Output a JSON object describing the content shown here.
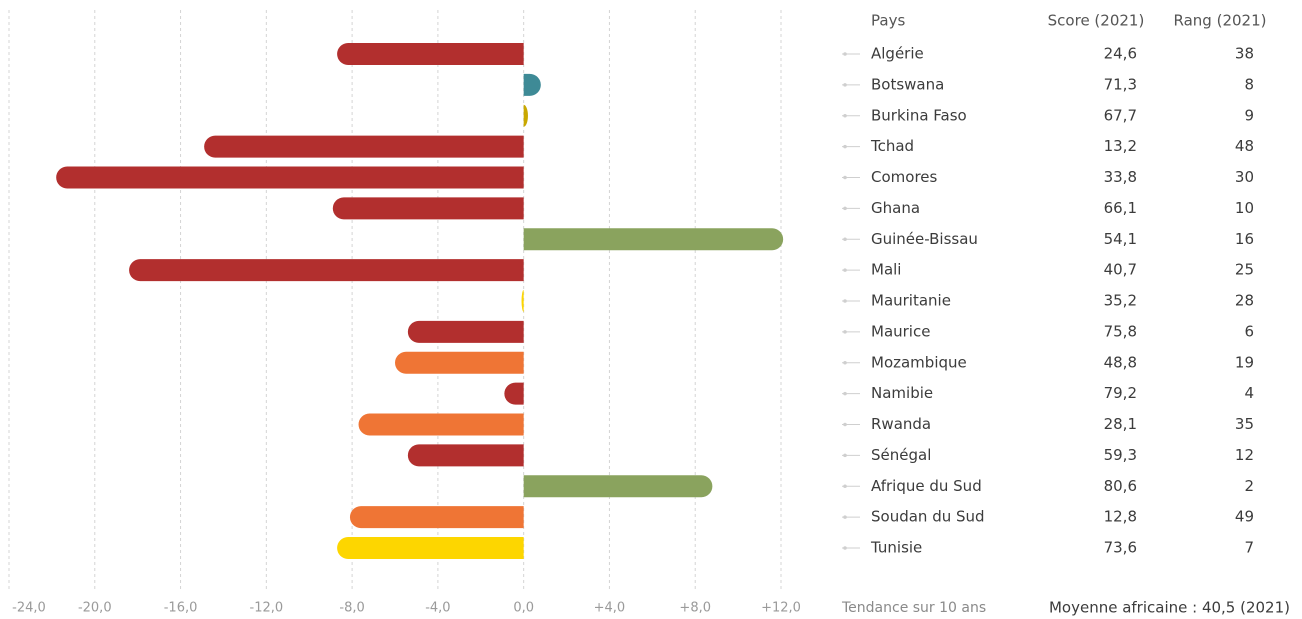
{
  "chart_data": {
    "type": "bar",
    "orientation": "horizontal",
    "categories": [
      "Algérie",
      "Botswana",
      "Burkina Faso",
      "Tchad",
      "Comores",
      "Ghana",
      "Guinée-Bissau",
      "Mali",
      "Mauritanie",
      "Maurice",
      "Mozambique",
      "Namibie",
      "Rwanda",
      "Sénégal",
      "Afrique du Sud",
      "Soudan du Sud",
      "Tunisie"
    ],
    "values": [
      -8.7,
      0.8,
      0.2,
      -14.9,
      -21.8,
      -8.9,
      12.1,
      -18.4,
      -0.1,
      -5.4,
      -6.0,
      -0.9,
      -7.7,
      -5.4,
      8.8,
      -8.1,
      -8.7
    ],
    "colors": [
      "#b22f2e",
      "#3e8a96",
      "#c9a800",
      "#b22f2e",
      "#b22f2e",
      "#b22f2e",
      "#8aa35e",
      "#b22f2e",
      "#fdd600",
      "#b22f2e",
      "#ef7535",
      "#b22f2e",
      "#ef7535",
      "#b22f2e",
      "#8aa35e",
      "#ef7535",
      "#fdd600"
    ],
    "xlim": [
      -24,
      12
    ],
    "xticks": [
      {
        "value": -24,
        "label": "-24,0"
      },
      {
        "value": -20,
        "label": "-20,0"
      },
      {
        "value": -16,
        "label": "-16,0"
      },
      {
        "value": -12,
        "label": "-12,0"
      },
      {
        "value": -8,
        "label": "-8,0"
      },
      {
        "value": -4,
        "label": "-4,0"
      },
      {
        "value": 0,
        "label": "0,0"
      },
      {
        "value": 4,
        "label": "+4,0"
      },
      {
        "value": 8,
        "label": "+8,0"
      },
      {
        "value": 12,
        "label": "+12,0"
      }
    ],
    "grid": true,
    "xlabel": "Tendance sur 10 ans",
    "table": {
      "headers": [
        "Pays",
        "Score (2021)",
        "Rang (2021)"
      ],
      "scores": [
        "24,6",
        "71,3",
        "67,7",
        "13,2",
        "33,8",
        "66,1",
        "54,1",
        "40,7",
        "35,2",
        "75,8",
        "48,8",
        "79,2",
        "28,1",
        "59,3",
        "80,6",
        "12,8",
        "73,6"
      ],
      "ranks": [
        38,
        8,
        9,
        48,
        30,
        10,
        16,
        25,
        28,
        6,
        19,
        4,
        35,
        12,
        2,
        49,
        7
      ]
    },
    "note": "Moyenne africaine : 40,5 (2021)"
  }
}
